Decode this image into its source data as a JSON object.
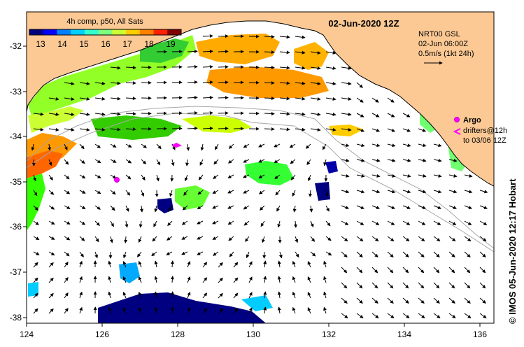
{
  "map": {
    "date_title": "02-Jun-2020 12Z",
    "colorbar": {
      "title": "4h comp, p50, All Sats",
      "ticks": [
        "13",
        "14",
        "15",
        "16",
        "17",
        "18",
        "19"
      ],
      "colors": [
        "#00007f",
        "#0000ff",
        "#007fff",
        "#00d0ff",
        "#33ffcc",
        "#7fff7f",
        "#ccff33",
        "#ffcc00",
        "#ff7f00",
        "#ff2000",
        "#7f0000"
      ]
    },
    "current_legend": {
      "line1": "NRT00 GSL",
      "line2": "02-Jun 06:00Z",
      "line3": "0.5m/s (1kt 24h)"
    },
    "argo_legend": {
      "argo": "Argo",
      "drifters_line1": "drifters@12h",
      "drifters_line2": "to 03/06 12Z"
    },
    "credit": "© IMOS 05-Jun-2020 12:17 Hobart",
    "x_ticks": [
      "124",
      "126",
      "128",
      "130",
      "132",
      "134",
      "136"
    ],
    "y_ticks": [
      "-32",
      "-33",
      "-34",
      "-35",
      "-36",
      "-37",
      "-38"
    ],
    "land_color": "#fcc994",
    "argo_color": "#ff00ff"
  }
}
